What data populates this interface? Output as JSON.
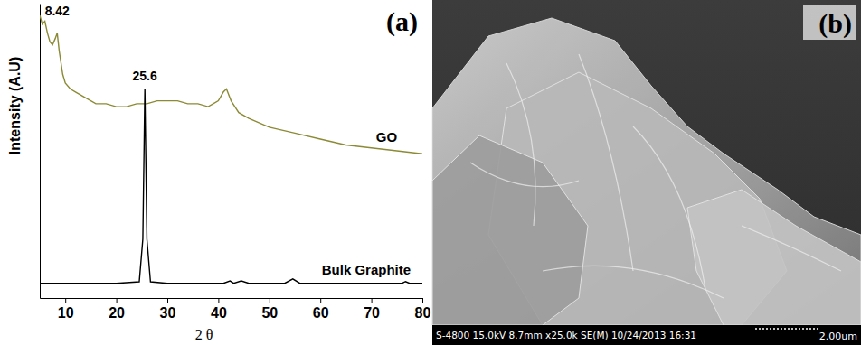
{
  "chart_data": {
    "type": "line",
    "title": "(a)",
    "x_label": "2 θ",
    "y_label": "Intensity (A.U)",
    "xlim": [
      5,
      80
    ],
    "ylim": [
      0,
      100
    ],
    "xticks": [
      10,
      20,
      30,
      40,
      50,
      60,
      70,
      80
    ],
    "tick_labels": "x",
    "series": [
      {
        "name": "GO",
        "color": "#8b8a35",
        "x": [
          5,
          5.5,
          6,
          6.5,
          7,
          7.5,
          8,
          8.42,
          8.8,
          9.5,
          10,
          11,
          12,
          14,
          16,
          18,
          20,
          22,
          24,
          26,
          28,
          30,
          32,
          34,
          36,
          38,
          39,
          40,
          41,
          41.6,
          42.5,
          44,
          46,
          50,
          55,
          60,
          65,
          70,
          75,
          80
        ],
        "values": [
          96,
          93,
          94,
          90,
          87,
          86,
          88,
          90,
          84,
          76,
          73,
          71,
          70,
          68,
          66,
          66,
          65,
          65,
          66,
          66,
          67,
          67,
          67,
          66,
          66,
          65,
          66,
          67,
          70,
          71,
          67,
          63,
          61,
          58,
          56,
          54,
          52,
          51,
          50,
          49
        ]
      },
      {
        "name": "Bulk Graphite",
        "color": "#000000",
        "x": [
          5,
          20,
          24.5,
          25.2,
          25.6,
          26.0,
          26.7,
          30,
          41,
          42.3,
          43,
          44.5,
          46,
          53,
          54.6,
          56,
          70,
          76,
          76.7,
          77.5,
          80
        ],
        "values": [
          5,
          5,
          5.5,
          20,
          71,
          20,
          5.5,
          5,
          5,
          5.8,
          5,
          5.8,
          5,
          5,
          6.5,
          5,
          5,
          5,
          5.6,
          5,
          5
        ]
      }
    ],
    "annotations": [
      {
        "text": "8.42",
        "x": 8.42,
        "y": 96
      },
      {
        "text": "25.6",
        "x": 25.6,
        "y": 74
      },
      {
        "text": "GO",
        "x": 73,
        "y": 53
      },
      {
        "text": "Bulk Graphite",
        "x": 69,
        "y": 8
      }
    ]
  },
  "image_panel": {
    "label": "(b)",
    "info_bar": "S-4800 15.0kV 8.7mm x25.0k SE(M) 10/24/2013 16:31",
    "scale_bar": "2.00um"
  }
}
